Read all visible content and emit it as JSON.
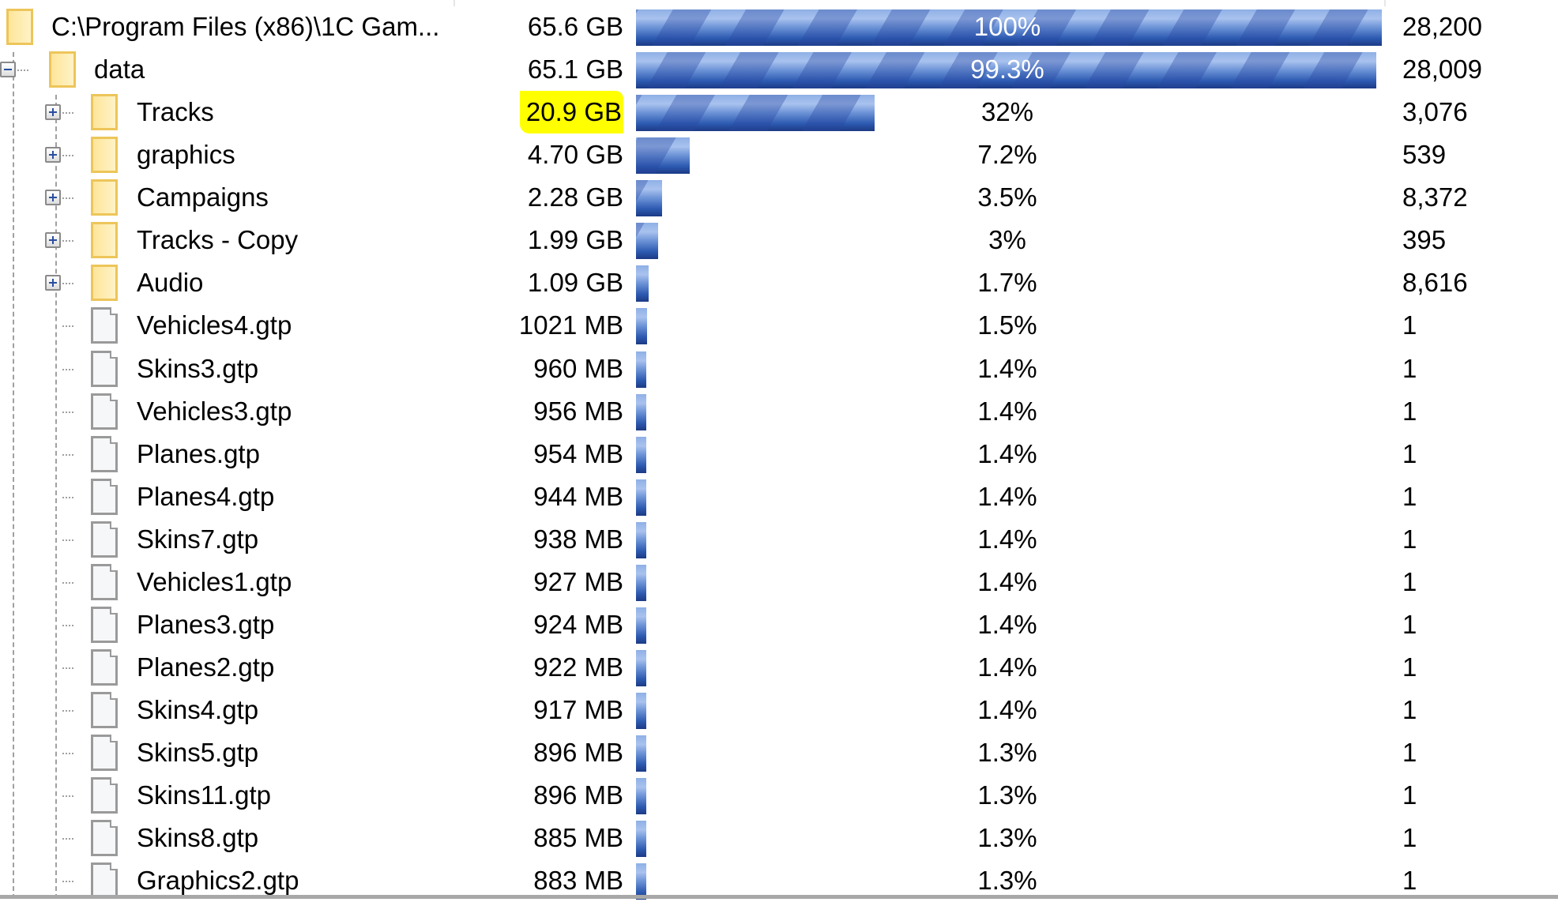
{
  "tree": {
    "rows": [
      {
        "name": "C:\\Program Files (x86)\\1C Gam...",
        "size": "65.6 GB",
        "percent": "100%",
        "fraction": 1.0,
        "count": "28,200",
        "type": "folder",
        "level": 0,
        "expander": "none"
      },
      {
        "name": "data",
        "size": "65.1 GB",
        "percent": "99.3%",
        "fraction": 0.993,
        "count": "28,009",
        "type": "folder",
        "level": 1,
        "expander": "minus"
      },
      {
        "name": "Tracks",
        "size": "20.9 GB",
        "percent": "32%",
        "fraction": 0.32,
        "count": "3,076",
        "type": "folder",
        "level": 2,
        "expander": "plus",
        "highlighted": true
      },
      {
        "name": "graphics",
        "size": "4.70 GB",
        "percent": "7.2%",
        "fraction": 0.072,
        "count": "539",
        "type": "folder",
        "level": 2,
        "expander": "plus"
      },
      {
        "name": "Campaigns",
        "size": "2.28 GB",
        "percent": "3.5%",
        "fraction": 0.035,
        "count": "8,372",
        "type": "folder",
        "level": 2,
        "expander": "plus"
      },
      {
        "name": "Tracks - Copy",
        "size": "1.99 GB",
        "percent": "3%",
        "fraction": 0.03,
        "count": "395",
        "type": "folder",
        "level": 2,
        "expander": "plus"
      },
      {
        "name": "Audio",
        "size": "1.09 GB",
        "percent": "1.7%",
        "fraction": 0.017,
        "count": "8,616",
        "type": "folder",
        "level": 2,
        "expander": "plus"
      },
      {
        "name": "Vehicles4.gtp",
        "size": "1021 MB",
        "percent": "1.5%",
        "fraction": 0.015,
        "count": "1",
        "type": "file",
        "level": 2,
        "expander": "none"
      },
      {
        "name": "Skins3.gtp",
        "size": "960 MB",
        "percent": "1.4%",
        "fraction": 0.014,
        "count": "1",
        "type": "file",
        "level": 2,
        "expander": "none"
      },
      {
        "name": "Vehicles3.gtp",
        "size": "956 MB",
        "percent": "1.4%",
        "fraction": 0.014,
        "count": "1",
        "type": "file",
        "level": 2,
        "expander": "none"
      },
      {
        "name": "Planes.gtp",
        "size": "954 MB",
        "percent": "1.4%",
        "fraction": 0.014,
        "count": "1",
        "type": "file",
        "level": 2,
        "expander": "none"
      },
      {
        "name": "Planes4.gtp",
        "size": "944 MB",
        "percent": "1.4%",
        "fraction": 0.014,
        "count": "1",
        "type": "file",
        "level": 2,
        "expander": "none"
      },
      {
        "name": "Skins7.gtp",
        "size": "938 MB",
        "percent": "1.4%",
        "fraction": 0.014,
        "count": "1",
        "type": "file",
        "level": 2,
        "expander": "none"
      },
      {
        "name": "Vehicles1.gtp",
        "size": "927 MB",
        "percent": "1.4%",
        "fraction": 0.014,
        "count": "1",
        "type": "file",
        "level": 2,
        "expander": "none"
      },
      {
        "name": "Planes3.gtp",
        "size": "924 MB",
        "percent": "1.4%",
        "fraction": 0.014,
        "count": "1",
        "type": "file",
        "level": 2,
        "expander": "none"
      },
      {
        "name": "Planes2.gtp",
        "size": "922 MB",
        "percent": "1.4%",
        "fraction": 0.014,
        "count": "1",
        "type": "file",
        "level": 2,
        "expander": "none"
      },
      {
        "name": "Skins4.gtp",
        "size": "917 MB",
        "percent": "1.4%",
        "fraction": 0.014,
        "count": "1",
        "type": "file",
        "level": 2,
        "expander": "none"
      },
      {
        "name": "Skins5.gtp",
        "size": "896 MB",
        "percent": "1.3%",
        "fraction": 0.013,
        "count": "1",
        "type": "file",
        "level": 2,
        "expander": "none"
      },
      {
        "name": "Skins11.gtp",
        "size": "896 MB",
        "percent": "1.3%",
        "fraction": 0.013,
        "count": "1",
        "type": "file",
        "level": 2,
        "expander": "none"
      },
      {
        "name": "Skins8.gtp",
        "size": "885 MB",
        "percent": "1.3%",
        "fraction": 0.013,
        "count": "1",
        "type": "file",
        "level": 2,
        "expander": "none"
      },
      {
        "name": "Graphics2.gtp",
        "size": "883 MB",
        "percent": "1.3%",
        "fraction": 0.013,
        "count": "1",
        "type": "file",
        "level": 2,
        "expander": "none"
      }
    ],
    "colors": {
      "highlight": "#ffff00",
      "bar_dark": "#1c3a85",
      "bar_light": "#a9c2ee",
      "folder": "#fde59a"
    }
  }
}
